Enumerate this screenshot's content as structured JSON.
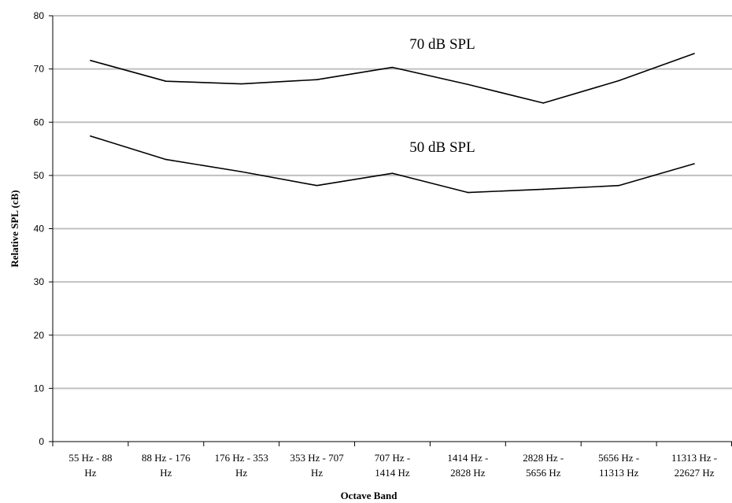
{
  "chart_data": {
    "type": "line",
    "title": "",
    "xlabel": "Octave Band",
    "ylabel": "Relative SPL (cB)",
    "ylim": [
      0,
      80
    ],
    "yticks": [
      0,
      10,
      20,
      30,
      40,
      50,
      60,
      70,
      80
    ],
    "grid": true,
    "legend": "none",
    "categories": [
      [
        "55 Hz - 88",
        "Hz"
      ],
      [
        "88 Hz - 176",
        "Hz"
      ],
      [
        "176 Hz - 353",
        "Hz"
      ],
      [
        "353 Hz - 707",
        "Hz"
      ],
      [
        "707 Hz -",
        "1414 Hz"
      ],
      [
        "1414 Hz -",
        "2828 Hz"
      ],
      [
        "2828 Hz -",
        "5656 Hz"
      ],
      [
        "5656 Hz -",
        "11313 Hz"
      ],
      [
        "11313 Hz -",
        "22627 Hz"
      ]
    ],
    "series": [
      {
        "name": "70 dB SPL",
        "color": "#000000",
        "values": [
          71.6,
          67.7,
          67.2,
          68.0,
          70.3,
          67.1,
          63.6,
          67.8,
          72.9
        ]
      },
      {
        "name": "50 dB SPL",
        "color": "#000000",
        "values": [
          57.4,
          53.0,
          50.7,
          48.1,
          50.4,
          46.8,
          47.4,
          48.1,
          52.2
        ]
      }
    ],
    "gridline_color": "#c0c0c0"
  }
}
